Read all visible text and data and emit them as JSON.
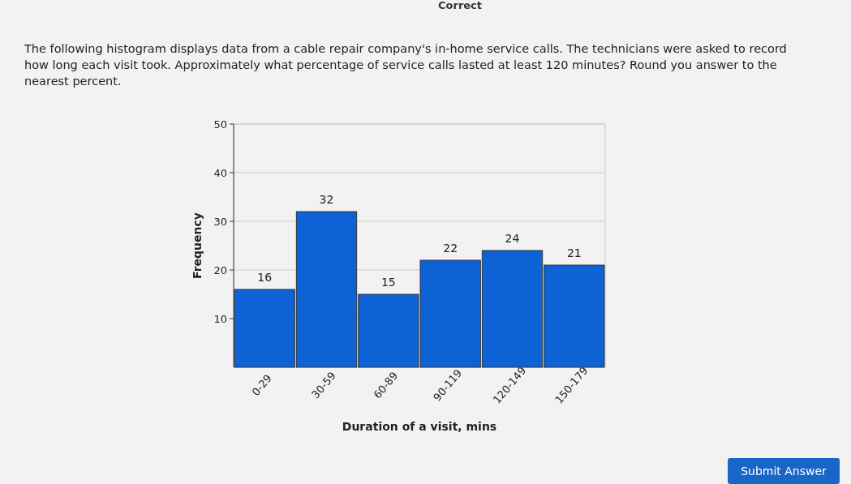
{
  "chart_data": {
    "type": "bar",
    "title": "The following histogram displays data from a cable repair company's in-home service calls. The technicians were asked to record how long each visit took. Approximately what percentage of service calls lasted at least 120 minutes? Round you answer to the nearest percent.",
    "categories": [
      "0-29",
      "30-59",
      "60-89",
      "90-119",
      "120-149",
      "150-179"
    ],
    "values": [
      16,
      32,
      15,
      22,
      24,
      21
    ],
    "color": "#0d63d6",
    "xlabel": "Duration of a visit, mins",
    "ylabel": "Frequency",
    "ylim": [
      0,
      50
    ],
    "yticks": [
      10,
      20,
      30,
      40,
      50
    ],
    "grid": "y",
    "data_labels": true,
    "annotations": [
      "Correct",
      "Submit Answer"
    ]
  }
}
